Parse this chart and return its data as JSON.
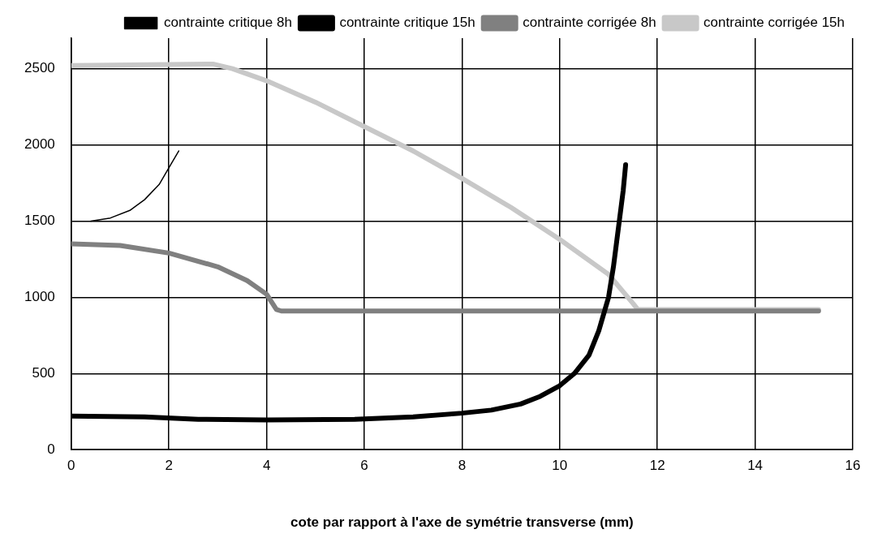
{
  "chart_data": {
    "type": "line",
    "xlabel": "cote par rapport à l'axe de symétrie transverse (mm)",
    "xlim": [
      0,
      16
    ],
    "xticks": [
      0,
      2,
      4,
      6,
      8,
      10,
      12,
      14,
      16
    ],
    "ylim": [
      0,
      2700
    ],
    "yticks": [
      0,
      500,
      1000,
      1500,
      2000,
      2500
    ],
    "grid": true,
    "legend": "top right",
    "marker": "none",
    "line_style": "solid",
    "series": [
      {
        "name": "contrainte critique 8h",
        "color": "#000000",
        "x": [
          0.4,
          0.8,
          1.2,
          1.5,
          1.8,
          2.0,
          2.2
        ],
        "values": [
          1500,
          1520,
          1570,
          1640,
          1740,
          1850,
          1960
        ]
      },
      {
        "name": "contrainte critique 15h",
        "color": "#000000",
        "x": [
          0,
          1.5,
          2.6,
          4,
          5.8,
          7,
          8,
          8.6,
          9.2,
          9.6,
          10,
          10.3,
          10.6,
          10.8,
          11,
          11.1,
          11.2,
          11.3,
          11.35
        ],
        "values": [
          220,
          215,
          200,
          195,
          200,
          215,
          240,
          260,
          300,
          350,
          420,
          500,
          620,
          780,
          1000,
          1200,
          1450,
          1700,
          1870
        ]
      },
      {
        "name": "contrainte corrigée 8h",
        "color": "#808080",
        "x": [
          0,
          1,
          2,
          3,
          3.6,
          4,
          4.2,
          4.3,
          15.3
        ],
        "values": [
          1350,
          1340,
          1290,
          1200,
          1110,
          1020,
          920,
          910,
          910
        ]
      },
      {
        "name": "contrainte corrigée 15h",
        "color": "#c8c8c8",
        "x": [
          0,
          2.9,
          3.3,
          4,
          5,
          6,
          7,
          8,
          9,
          10,
          11,
          11.5,
          11.6,
          15.3
        ],
        "values": [
          2520,
          2530,
          2500,
          2420,
          2280,
          2120,
          1960,
          1780,
          1590,
          1380,
          1150,
          960,
          920,
          920
        ]
      }
    ]
  }
}
